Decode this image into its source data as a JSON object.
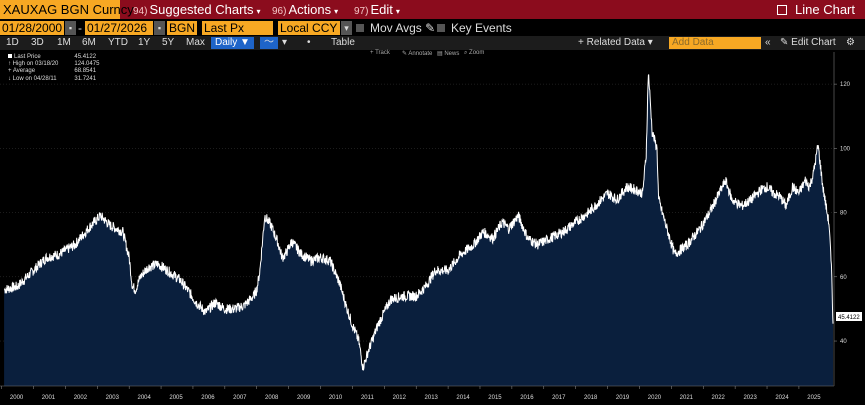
{
  "header": {
    "ticker": "XAUXAG BGN Curncy",
    "menus": [
      {
        "num": "94)",
        "label": "Suggested Charts"
      },
      {
        "num": "96)",
        "label": "Actions"
      },
      {
        "num": "97)",
        "label": "Edit"
      }
    ],
    "chart_type": "Line Chart"
  },
  "controls": {
    "start_date": "01/28/2000",
    "end_date": "01/27/2026",
    "source": "BGN",
    "field": "Last Px",
    "currency": "Local CCY",
    "mov_avgs": "Mov Avgs",
    "key_events": "Key Events"
  },
  "periods": [
    "1D",
    "3D",
    "1M",
    "6M",
    "YTD",
    "1Y",
    "5Y",
    "Max"
  ],
  "frequency": "Daily",
  "table_label": "Table",
  "related_data": "Related Data",
  "add_data_placeholder": "Add Data",
  "edit_chart": "Edit Chart",
  "tools": {
    "track": "Track",
    "annotate": "Annotate",
    "news": "News",
    "zoom": "Zoom"
  },
  "legend": {
    "last_price_label": "Last Price",
    "last_price_value": "45.4122",
    "high_label": "High on 03/18/20",
    "high_value": "124.0475",
    "avg_label": "Average",
    "avg_value": "68.8541",
    "low_label": "Low on 04/28/11",
    "low_value": "31.7241"
  },
  "last_value_tag": "45.4122",
  "colors": {
    "header": "#8b0c1d",
    "field": "#f7a823",
    "area": "#0a1f3d",
    "line": "#ffffff"
  },
  "chart_data": {
    "type": "area",
    "title": "XAUXAG BGN Curncy",
    "ylabel": "",
    "xlabel": "",
    "ylim": [
      26,
      130
    ],
    "xlim": [
      1999.95,
      2026.1
    ],
    "yticks": [
      40,
      60,
      80,
      100,
      120
    ],
    "xticks": [
      "2000",
      "2001",
      "2002",
      "2003",
      "2004",
      "2005",
      "2006",
      "2007",
      "2008",
      "2009",
      "2010",
      "2011",
      "2012",
      "2013",
      "2014",
      "2015",
      "2016",
      "2017",
      "2018",
      "2019",
      "2020",
      "2021",
      "2022",
      "2023",
      "2024",
      "2025"
    ],
    "series": [
      {
        "name": "Last Price",
        "x": [
          2000.08,
          2000.5,
          2001.0,
          2001.4,
          2001.8,
          2002.3,
          2002.8,
          2003.1,
          2003.4,
          2003.8,
          2004.0,
          2004.1,
          2004.2,
          2004.35,
          2004.6,
          2004.9,
          2005.2,
          2005.6,
          2005.9,
          2006.1,
          2006.3,
          2006.4,
          2006.7,
          2007.0,
          2007.3,
          2007.6,
          2007.9,
          2008.0,
          2008.1,
          2008.25,
          2008.45,
          2008.65,
          2008.8,
          2008.9,
          2009.1,
          2009.4,
          2009.7,
          2010.0,
          2010.3,
          2010.6,
          2010.8,
          2011.0,
          2011.2,
          2011.33,
          2011.5,
          2011.8,
          2012.2,
          2012.6,
          2013.0,
          2013.3,
          2013.6,
          2014.0,
          2014.4,
          2014.8,
          2015.1,
          2015.4,
          2015.7,
          2015.9,
          2016.2,
          2016.5,
          2016.8,
          2017.2,
          2017.6,
          2018.0,
          2018.4,
          2018.8,
          2019.0,
          2019.3,
          2019.6,
          2019.9,
          2020.1,
          2020.21,
          2020.28,
          2020.4,
          2020.55,
          2020.6,
          2020.8,
          2021.1,
          2021.5,
          2021.9,
          2022.2,
          2022.5,
          2022.7,
          2022.9,
          2023.2,
          2023.5,
          2023.8,
          2024.0,
          2024.2,
          2024.4,
          2024.6,
          2024.8,
          2025.0,
          2025.2,
          2025.33,
          2025.45,
          2025.6,
          2025.75,
          2025.85,
          2025.95,
          2026.03,
          2026.07
        ],
        "values": [
          56,
          57,
          62,
          66,
          67,
          70,
          76,
          79,
          76,
          74,
          66,
          57,
          56,
          60,
          63,
          64,
          62,
          59,
          55,
          52,
          50,
          49,
          52,
          50,
          50,
          51,
          54,
          56,
          62,
          79,
          76,
          71,
          66,
          67,
          71,
          67,
          65,
          66,
          65,
          58,
          51,
          45,
          40,
          31.7,
          37,
          45,
          53,
          54,
          54,
          57,
          62,
          62,
          67,
          70,
          74,
          72,
          77,
          75,
          79,
          72,
          70,
          72,
          74,
          77,
          80,
          84,
          86,
          84,
          88,
          87,
          86,
          98,
          124,
          105,
          100,
          84,
          77,
          67,
          70,
          75,
          80,
          86,
          90,
          84,
          82,
          84,
          87,
          88,
          86,
          85,
          82,
          88,
          86,
          90,
          88,
          92,
          101,
          88,
          82,
          76,
          60,
          45.4
        ]
      }
    ]
  }
}
